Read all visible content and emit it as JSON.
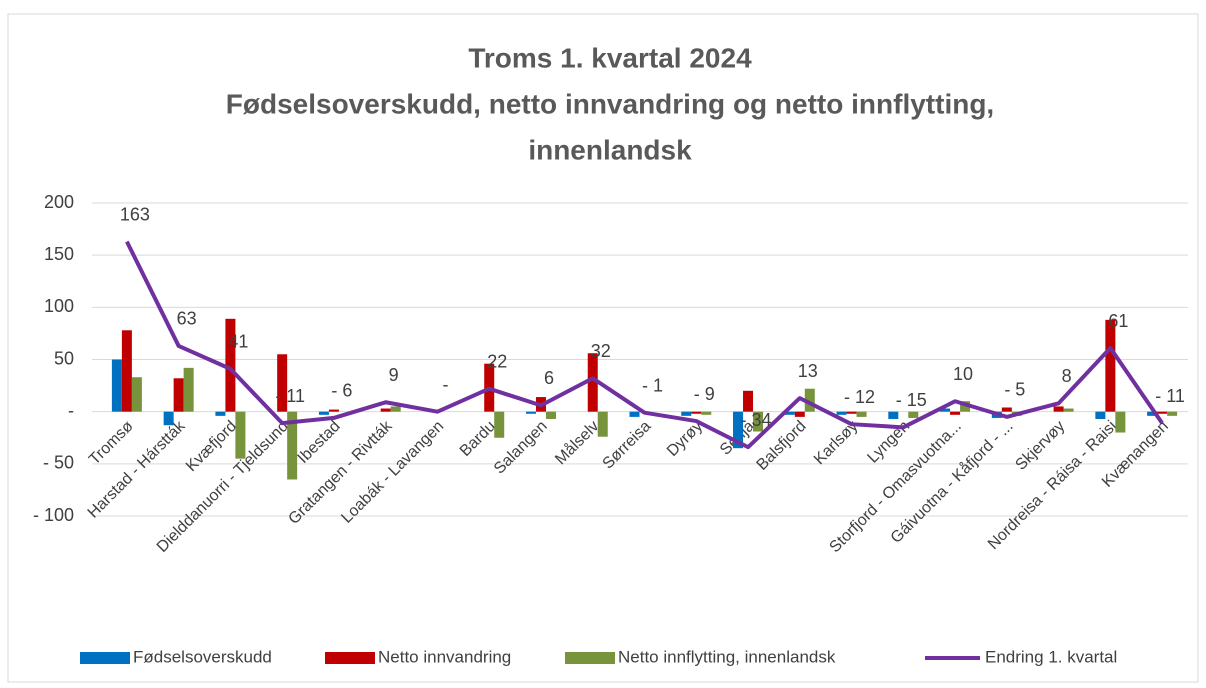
{
  "chart_data": {
    "type": "bar",
    "title": [
      "Troms 1. kvartal 2024",
      "Fødselsoverskudd, netto innvandring og netto innflytting,",
      "innenlandsk"
    ],
    "categories": [
      "Tromsø",
      "Harstad - Hárstták",
      "Kvæfjord",
      "Dielddanuorri - Tjeldsund",
      "Ibestad",
      "Gratangen - Rivtták",
      "Loabák - Lavangen",
      "Bardu",
      "Salangen",
      "Målselv",
      "Sørreisa",
      "Dyrøy",
      "Senja",
      "Balsfjord",
      "Karlsøy",
      "Lyngen",
      "Storfjord - Omasvuotna...",
      "Gáivuotna - Kåfjord - ...",
      "Skjervøy",
      "Nordreisa - Ráisa - Raisi",
      "Kvænangen"
    ],
    "series": [
      {
        "name": "Fødselsoverskudd",
        "type": "bar",
        "color": "#0070c0",
        "values": [
          50,
          -13,
          -4,
          0,
          -3,
          0,
          0,
          0,
          -2,
          0,
          -5,
          -4,
          -35,
          -3,
          -3,
          -7,
          3,
          -6,
          0,
          -7,
          -4
        ]
      },
      {
        "name": "Netto innvandring",
        "type": "bar",
        "color": "#c00000",
        "values": [
          78,
          32,
          89,
          55,
          2,
          3,
          0,
          46,
          14,
          56,
          0,
          -2,
          20,
          -5,
          -2,
          0,
          -3,
          4,
          5,
          88,
          -2
        ]
      },
      {
        "name": "Netto innflytting, innenlandsk",
        "type": "bar",
        "color": "#77933c",
        "values": [
          33,
          42,
          -45,
          -65,
          0,
          5,
          0,
          -25,
          -7,
          -24,
          0,
          -3,
          -19,
          22,
          -5,
          -6,
          10,
          -4,
          3,
          -20,
          -4
        ]
      },
      {
        "name": "Endring 1. kvartal",
        "type": "line",
        "color": "#7030a0",
        "values": [
          163,
          63,
          41,
          -11,
          -6,
          9,
          0,
          22,
          6,
          32,
          -1,
          -9,
          -34,
          13,
          -12,
          -15,
          10,
          -5,
          8,
          61,
          -11
        ],
        "value_labels": [
          "163",
          "63",
          "41",
          "- 11",
          "- 6",
          "9",
          "-",
          "22",
          "6",
          "32",
          "- 1",
          "- 9",
          "- 34",
          "13",
          "- 12",
          "- 15",
          "10",
          "- 5",
          "8",
          "61",
          "- 11"
        ]
      }
    ],
    "ylim": [
      -100,
      200
    ],
    "yticks": [
      {
        "value": -100,
        "label": "- 100"
      },
      {
        "value": -50,
        "label": "- 50"
      },
      {
        "value": 0,
        "label": "-"
      },
      50,
      100,
      150,
      200
    ],
    "grid": true,
    "legend": "bottom"
  }
}
